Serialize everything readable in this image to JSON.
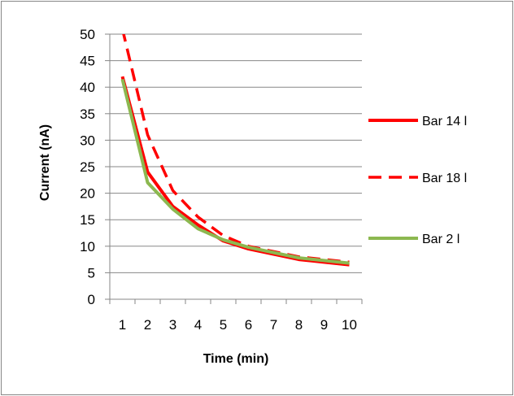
{
  "chart_data": {
    "type": "line",
    "title": "",
    "xlabel": "Time (min)",
    "ylabel": "Current  (nA)",
    "x": [
      1,
      2,
      3,
      4,
      5,
      6,
      7,
      8,
      9,
      10
    ],
    "xlim": [
      0.5,
      10.5
    ],
    "ylim": [
      0,
      50
    ],
    "yticks": [
      0,
      5,
      10,
      15,
      20,
      25,
      30,
      35,
      40,
      45,
      50
    ],
    "grid": "horizontal",
    "legend_position": "right",
    "series": [
      {
        "name": "Bar 14 l",
        "color": "#ff0000",
        "dash": "solid",
        "values": [
          42,
          24,
          17.5,
          14,
          11,
          9.5,
          8.5,
          7.5,
          7,
          6.5
        ]
      },
      {
        "name": "Bar 18 l",
        "color": "#ff0000",
        "dash": "dashed",
        "values": [
          51,
          31,
          20.5,
          15.5,
          12,
          10,
          9,
          8,
          7.5,
          7
        ]
      },
      {
        "name": "Bar  2 l",
        "color": "#8cb850",
        "dash": "solid",
        "values": [
          41.5,
          22,
          17,
          13.3,
          11.2,
          9.8,
          8.8,
          7.8,
          7.3,
          6.8
        ]
      }
    ]
  }
}
